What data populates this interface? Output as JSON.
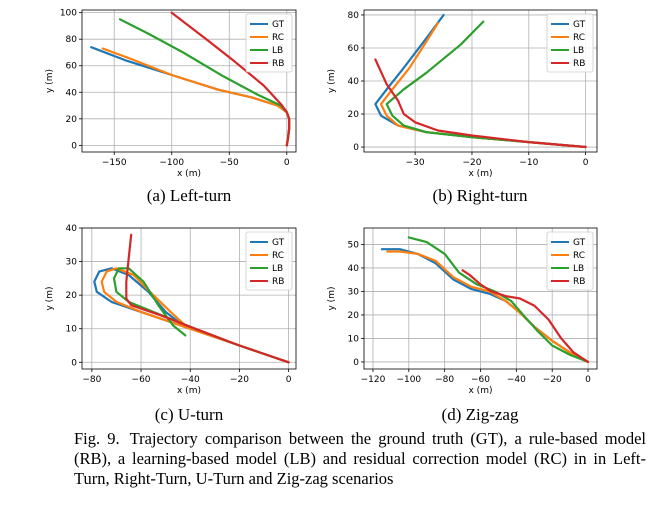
{
  "colors": {
    "GT": "#1f77b4",
    "RC": "#ff7f0e",
    "LB": "#2ca02c",
    "RB": "#d62728"
  },
  "caption": {
    "label": "Fig. 9.",
    "text": "Trajectory comparison between the ground truth (GT), a rule-based model (RB), a learning-based model (LB) and residual correction model (RC) in in Left-Turn, Right-Turn, U-Turn and Zig-zag scenarios"
  },
  "chart_data": [
    {
      "type": "line",
      "subcaption": "(a) Left-turn",
      "xlabel": "x (m)",
      "ylabel": "y (m)",
      "xlim": [
        -178,
        8
      ],
      "ylim": [
        -5,
        102
      ],
      "xticks": [
        -150,
        -100,
        -50,
        0
      ],
      "yticks": [
        0,
        20,
        40,
        60,
        80,
        100
      ],
      "grid": true,
      "legend": "top-right",
      "series": [
        {
          "name": "GT",
          "points": [
            [
              0,
              0
            ],
            [
              1,
              5
            ],
            [
              2,
              12
            ],
            [
              2,
              20
            ],
            [
              0,
              25
            ],
            [
              -8,
              30
            ],
            [
              -30,
              36
            ],
            [
              -60,
              42
            ],
            [
              -100,
              53
            ],
            [
              -140,
              64
            ],
            [
              -170,
              74
            ]
          ]
        },
        {
          "name": "RC",
          "points": [
            [
              0,
              0
            ],
            [
              1,
              5
            ],
            [
              2,
              12
            ],
            [
              2,
              20
            ],
            [
              0,
              25
            ],
            [
              -8,
              30
            ],
            [
              -30,
              36
            ],
            [
              -60,
              42
            ],
            [
              -100,
              53
            ],
            [
              -135,
              65
            ],
            [
              -160,
              73
            ]
          ]
        },
        {
          "name": "LB",
          "points": [
            [
              0,
              0
            ],
            [
              1,
              5
            ],
            [
              2,
              12
            ],
            [
              2,
              20
            ],
            [
              0,
              25
            ],
            [
              -5,
              30
            ],
            [
              -25,
              38
            ],
            [
              -55,
              52
            ],
            [
              -90,
              70
            ],
            [
              -120,
              84
            ],
            [
              -145,
              95
            ]
          ]
        },
        {
          "name": "RB",
          "points": [
            [
              0,
              0
            ],
            [
              1,
              5
            ],
            [
              2,
              12
            ],
            [
              2,
              20
            ],
            [
              0,
              25
            ],
            [
              -5,
              31
            ],
            [
              -20,
              45
            ],
            [
              -45,
              63
            ],
            [
              -70,
              80
            ],
            [
              -100,
              100
            ]
          ]
        }
      ]
    },
    {
      "type": "line",
      "subcaption": "(b) Right-turn",
      "xlabel": "x (m)",
      "ylabel": "y (m)",
      "xlim": [
        -39,
        2
      ],
      "ylim": [
        -3,
        83
      ],
      "xticks": [
        -30,
        -20,
        -10,
        0
      ],
      "yticks": [
        0,
        20,
        40,
        60,
        80
      ],
      "grid": true,
      "legend": "top-right",
      "series": [
        {
          "name": "GT",
          "points": [
            [
              0,
              0
            ],
            [
              -10,
              3
            ],
            [
              -20,
              6
            ],
            [
              -28,
              9
            ],
            [
              -33,
              13
            ],
            [
              -36,
              19
            ],
            [
              -37,
              26
            ],
            [
              -35,
              35
            ],
            [
              -32,
              48
            ],
            [
              -28,
              66
            ],
            [
              -25,
              80
            ]
          ]
        },
        {
          "name": "RC",
          "points": [
            [
              0,
              0
            ],
            [
              -10,
              3
            ],
            [
              -20,
              6
            ],
            [
              -28,
              9
            ],
            [
              -33,
              13
            ],
            [
              -35,
              19
            ],
            [
              -36,
              26
            ],
            [
              -34,
              35
            ],
            [
              -31,
              48
            ],
            [
              -28,
              64
            ],
            [
              -26,
              75
            ]
          ]
        },
        {
          "name": "LB",
          "points": [
            [
              0,
              0
            ],
            [
              -10,
              3
            ],
            [
              -20,
              6
            ],
            [
              -28,
              9
            ],
            [
              -32,
              13
            ],
            [
              -34,
              19
            ],
            [
              -35,
              26
            ],
            [
              -32,
              35
            ],
            [
              -28,
              45
            ],
            [
              -22,
              62
            ],
            [
              -18,
              76
            ]
          ]
        },
        {
          "name": "RB",
          "points": [
            [
              0,
              0
            ],
            [
              -10,
              3
            ],
            [
              -20,
              7
            ],
            [
              -26,
              10
            ],
            [
              -30,
              15
            ],
            [
              -32,
              20
            ],
            [
              -33,
              28
            ],
            [
              -35,
              38
            ],
            [
              -37,
              53
            ]
          ]
        }
      ]
    },
    {
      "type": "line",
      "subcaption": "(c) U-turn",
      "xlabel": "x (m)",
      "ylabel": "y (m)",
      "xlim": [
        -84,
        3
      ],
      "ylim": [
        -2,
        40
      ],
      "xticks": [
        -80,
        -60,
        -40,
        -20,
        0
      ],
      "yticks": [
        0,
        10,
        20,
        30,
        40
      ],
      "grid": true,
      "legend": "top-right",
      "series": [
        {
          "name": "GT",
          "points": [
            [
              0,
              0
            ],
            [
              -20,
              5
            ],
            [
              -40,
              10
            ],
            [
              -60,
              15
            ],
            [
              -72,
              18
            ],
            [
              -78,
              21
            ],
            [
              -79,
              24
            ],
            [
              -77,
              27
            ],
            [
              -72,
              28
            ],
            [
              -65,
              26
            ],
            [
              -57,
              21
            ],
            [
              -50,
              15
            ],
            [
              -43,
              11
            ]
          ]
        },
        {
          "name": "RC",
          "points": [
            [
              0,
              0
            ],
            [
              -20,
              5
            ],
            [
              -40,
              10
            ],
            [
              -60,
              15
            ],
            [
              -70,
              18
            ],
            [
              -75,
              21
            ],
            [
              -76,
              24
            ],
            [
              -74,
              27
            ],
            [
              -70,
              28
            ],
            [
              -63,
              26
            ],
            [
              -55,
              20
            ],
            [
              -48,
              15
            ],
            [
              -42,
              11
            ]
          ]
        },
        {
          "name": "LB",
          "points": [
            [
              0,
              0
            ],
            [
              -20,
              5
            ],
            [
              -38,
              10
            ],
            [
              -55,
              15
            ],
            [
              -65,
              18
            ],
            [
              -70,
              21
            ],
            [
              -71,
              25
            ],
            [
              -69,
              28
            ],
            [
              -65,
              28
            ],
            [
              -59,
              24
            ],
            [
              -53,
              17
            ],
            [
              -47,
              11
            ],
            [
              -42,
              8
            ]
          ]
        },
        {
          "name": "RB",
          "points": [
            [
              0,
              0
            ],
            [
              -20,
              5
            ],
            [
              -38,
              10
            ],
            [
              -52,
              14
            ],
            [
              -60,
              16
            ],
            [
              -64,
              17
            ],
            [
              -66,
              19
            ],
            [
              -66,
              24
            ],
            [
              -65,
              31
            ],
            [
              -64,
              38
            ]
          ]
        }
      ]
    },
    {
      "type": "line",
      "subcaption": "(d) Zig-zag",
      "xlabel": "x (m)",
      "ylabel": "y (m)",
      "xlim": [
        -125,
        5
      ],
      "ylim": [
        -3,
        57
      ],
      "xticks": [
        -120,
        -100,
        -80,
        -60,
        -40,
        -20,
        0
      ],
      "yticks": [
        0,
        10,
        20,
        30,
        40,
        50
      ],
      "grid": true,
      "legend": "top-right",
      "series": [
        {
          "name": "GT",
          "points": [
            [
              0,
              0
            ],
            [
              -10,
              4
            ],
            [
              -20,
              9
            ],
            [
              -30,
              15
            ],
            [
              -38,
              21
            ],
            [
              -46,
              26
            ],
            [
              -55,
              29
            ],
            [
              -65,
              31
            ],
            [
              -75,
              35
            ],
            [
              -85,
              42
            ],
            [
              -95,
              46
            ],
            [
              -105,
              48
            ],
            [
              -115,
              48
            ]
          ]
        },
        {
          "name": "RC",
          "points": [
            [
              0,
              0
            ],
            [
              -10,
              4
            ],
            [
              -20,
              9
            ],
            [
              -30,
              15
            ],
            [
              -38,
              21
            ],
            [
              -46,
              26
            ],
            [
              -55,
              30
            ],
            [
              -65,
              32
            ],
            [
              -75,
              36
            ],
            [
              -85,
              43
            ],
            [
              -95,
              46
            ],
            [
              -105,
              47
            ],
            [
              -112,
              47
            ]
          ]
        },
        {
          "name": "LB",
          "points": [
            [
              0,
              0
            ],
            [
              -10,
              3
            ],
            [
              -20,
              7
            ],
            [
              -28,
              13
            ],
            [
              -35,
              19
            ],
            [
              -43,
              26
            ],
            [
              -52,
              30
            ],
            [
              -62,
              33
            ],
            [
              -72,
              38
            ],
            [
              -80,
              46
            ],
            [
              -90,
              51
            ],
            [
              -100,
              53
            ]
          ]
        },
        {
          "name": "RB",
          "points": [
            [
              0,
              0
            ],
            [
              -8,
              4
            ],
            [
              -15,
              10
            ],
            [
              -22,
              18
            ],
            [
              -30,
              24
            ],
            [
              -38,
              27
            ],
            [
              -46,
              28
            ],
            [
              -54,
              30
            ],
            [
              -60,
              33
            ],
            [
              -66,
              37
            ],
            [
              -70,
              39
            ]
          ]
        }
      ]
    }
  ]
}
